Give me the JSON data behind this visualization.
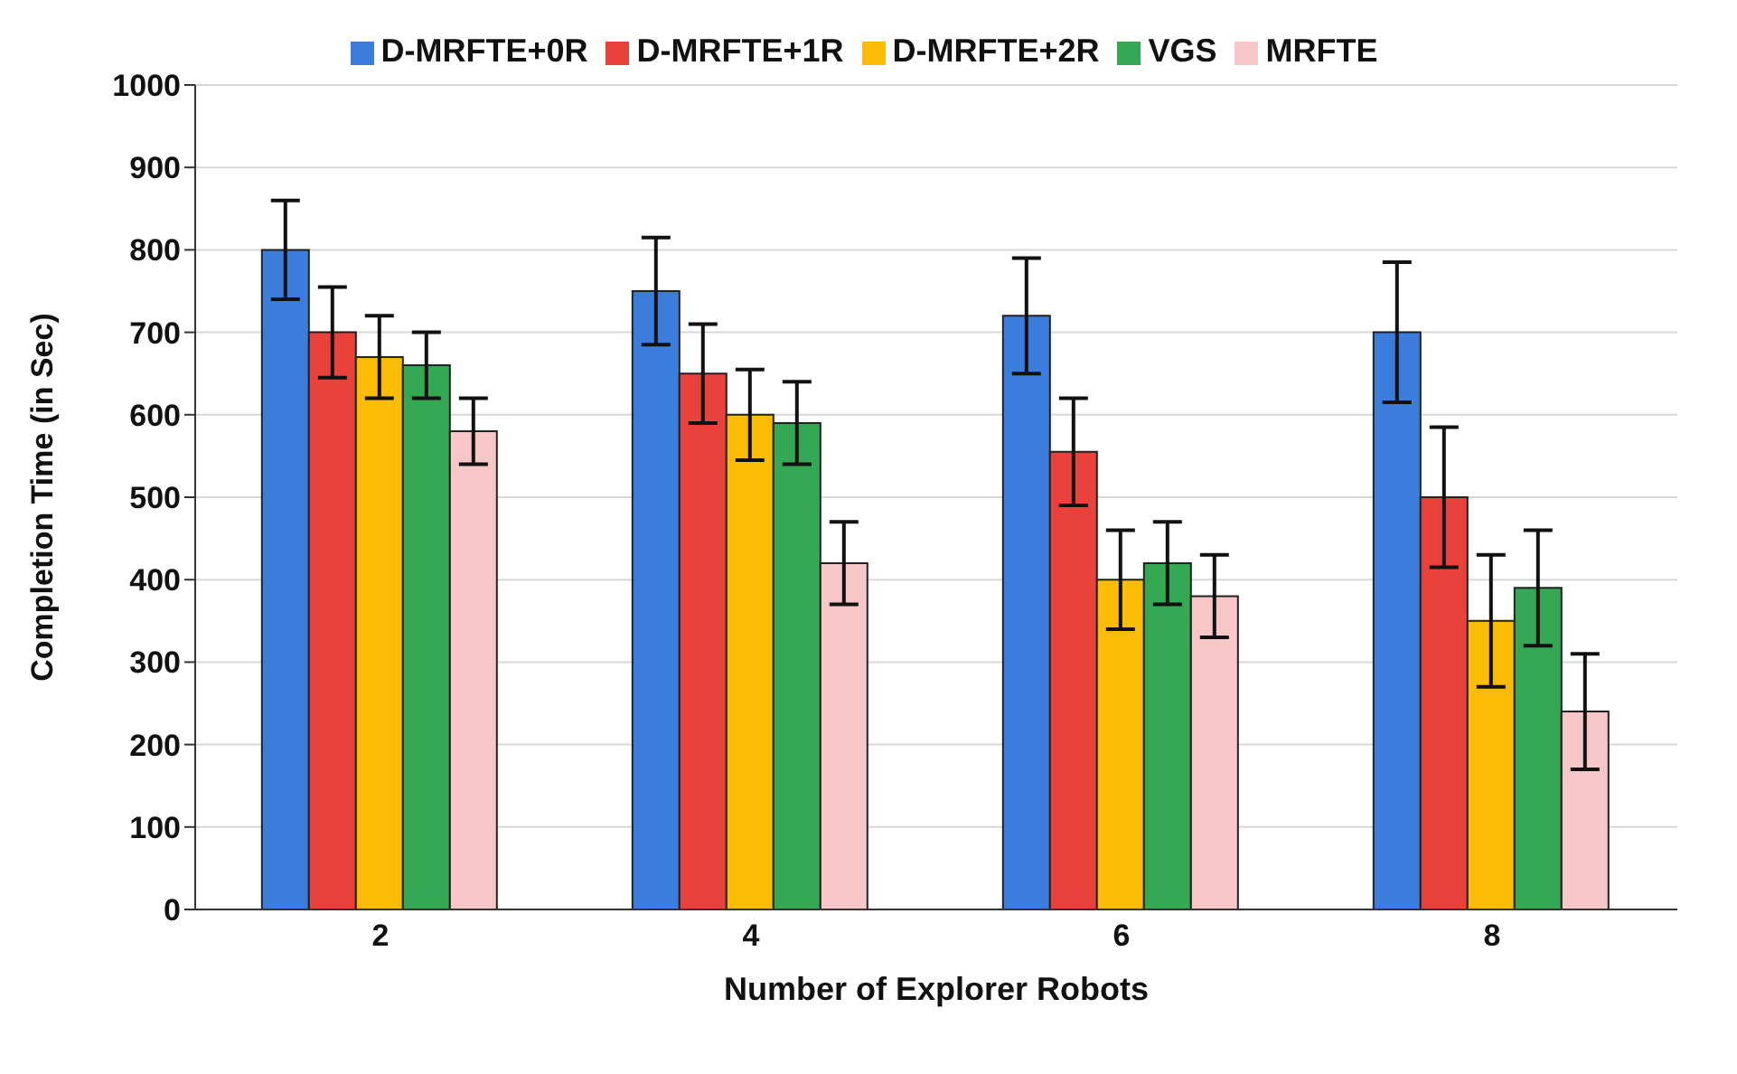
{
  "chart_data": {
    "type": "bar",
    "xlabel": "Number of Explorer Robots",
    "ylabel": "Completion Time (in Sec)",
    "categories": [
      "2",
      "4",
      "6",
      "8"
    ],
    "series": [
      {
        "name": "D-MRFTE+0R",
        "color": "#3b7ddd",
        "values": [
          800,
          750,
          720,
          700
        ],
        "errors": [
          60,
          65,
          70,
          85
        ]
      },
      {
        "name": "D-MRFTE+1R",
        "color": "#e8423a",
        "values": [
          700,
          650,
          555,
          500
        ],
        "errors": [
          55,
          60,
          65,
          85
        ]
      },
      {
        "name": "D-MRFTE+2R",
        "color": "#fbbc05",
        "values": [
          670,
          600,
          400,
          350
        ],
        "errors": [
          50,
          55,
          60,
          80
        ]
      },
      {
        "name": "VGS",
        "color": "#34a853",
        "values": [
          660,
          590,
          420,
          390
        ],
        "errors": [
          40,
          50,
          50,
          70
        ]
      },
      {
        "name": "MRFTE",
        "color": "#f7c7c7",
        "values": [
          580,
          420,
          380,
          240
        ],
        "errors": [
          40,
          50,
          50,
          70
        ]
      }
    ],
    "ylim": [
      0,
      1000
    ],
    "yticks": [
      0,
      100,
      200,
      300,
      400,
      500,
      600,
      700,
      800,
      900,
      1000
    ],
    "grid": "y",
    "legend": "top"
  }
}
